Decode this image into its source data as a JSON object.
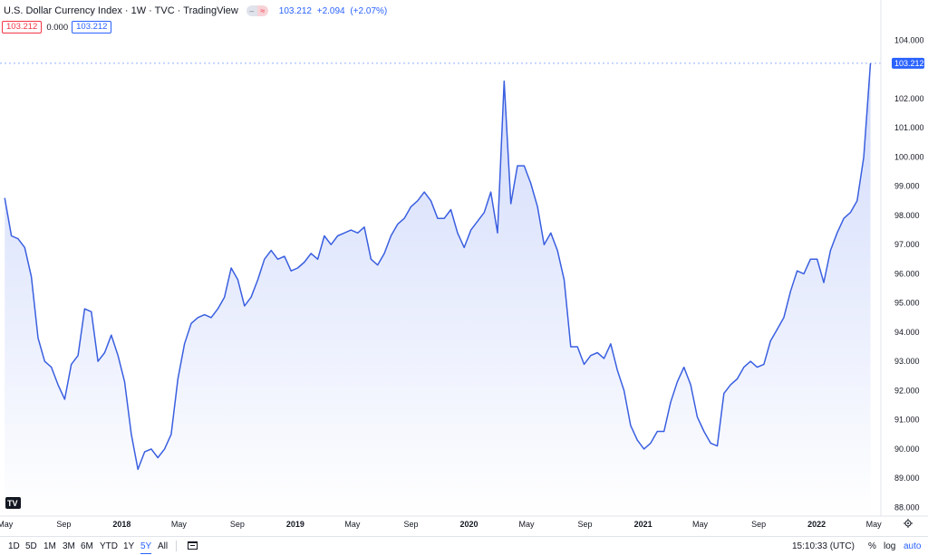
{
  "header": {
    "title": "U.S. Dollar Currency Index · 1W · TVC · TradingView",
    "last": "103.212",
    "change": "+2.094",
    "change_pct": "(+2.07%)"
  },
  "subheader": {
    "bid": "103.212",
    "spread": "0.000",
    "ask": "103.212"
  },
  "chart_data": {
    "type": "area",
    "ylim": [
      87.7,
      104.45
    ],
    "y_ticks": [
      "104.000",
      "103.000",
      "102.000",
      "101.000",
      "100.000",
      "99.000",
      "98.000",
      "97.000",
      "96.000",
      "95.000",
      "94.000",
      "93.000",
      "92.000",
      "91.000",
      "90.000",
      "89.000",
      "88.000"
    ],
    "x_ticks": [
      {
        "label": "May",
        "date": "2017-05-01"
      },
      {
        "label": "Sep",
        "date": "2017-09-01"
      },
      {
        "label": "2018",
        "date": "2018-01-01",
        "bold": true
      },
      {
        "label": "May",
        "date": "2018-05-01"
      },
      {
        "label": "Sep",
        "date": "2018-09-01"
      },
      {
        "label": "2019",
        "date": "2019-01-01",
        "bold": true
      },
      {
        "label": "May",
        "date": "2019-05-01"
      },
      {
        "label": "Sep",
        "date": "2019-09-01"
      },
      {
        "label": "2020",
        "date": "2020-01-01",
        "bold": true
      },
      {
        "label": "May",
        "date": "2020-05-01"
      },
      {
        "label": "Sep",
        "date": "2020-09-01"
      },
      {
        "label": "2021",
        "date": "2021-01-01",
        "bold": true
      },
      {
        "label": "May",
        "date": "2021-05-01"
      },
      {
        "label": "Sep",
        "date": "2021-09-01"
      },
      {
        "label": "2022",
        "date": "2022-01-01",
        "bold": true
      },
      {
        "label": "May",
        "date": "2022-05-01"
      }
    ],
    "last_value": 103.212,
    "last_label": "103.212",
    "x": [
      "2017-04-30",
      "2017-05-14",
      "2017-05-28",
      "2017-06-11",
      "2017-06-25",
      "2017-07-09",
      "2017-07-23",
      "2017-08-06",
      "2017-08-20",
      "2017-09-03",
      "2017-09-17",
      "2017-10-01",
      "2017-10-15",
      "2017-10-29",
      "2017-11-12",
      "2017-11-26",
      "2017-12-10",
      "2017-12-24",
      "2018-01-07",
      "2018-01-21",
      "2018-02-04",
      "2018-02-18",
      "2018-03-04",
      "2018-03-18",
      "2018-04-01",
      "2018-04-15",
      "2018-04-29",
      "2018-05-13",
      "2018-05-27",
      "2018-06-10",
      "2018-06-24",
      "2018-07-08",
      "2018-07-22",
      "2018-08-05",
      "2018-08-19",
      "2018-09-02",
      "2018-09-16",
      "2018-09-30",
      "2018-10-14",
      "2018-10-28",
      "2018-11-11",
      "2018-11-25",
      "2018-12-09",
      "2018-12-23",
      "2019-01-06",
      "2019-01-20",
      "2019-02-03",
      "2019-02-17",
      "2019-03-03",
      "2019-03-17",
      "2019-03-31",
      "2019-04-14",
      "2019-04-28",
      "2019-05-12",
      "2019-05-26",
      "2019-06-09",
      "2019-06-23",
      "2019-07-07",
      "2019-07-21",
      "2019-08-04",
      "2019-08-18",
      "2019-09-01",
      "2019-09-15",
      "2019-09-29",
      "2019-10-13",
      "2019-10-27",
      "2019-11-10",
      "2019-11-24",
      "2019-12-08",
      "2019-12-22",
      "2020-01-05",
      "2020-01-19",
      "2020-02-02",
      "2020-02-16",
      "2020-03-01",
      "2020-03-15",
      "2020-03-29",
      "2020-04-12",
      "2020-04-26",
      "2020-05-10",
      "2020-05-24",
      "2020-06-07",
      "2020-06-21",
      "2020-07-05",
      "2020-07-19",
      "2020-08-02",
      "2020-08-16",
      "2020-08-30",
      "2020-09-13",
      "2020-09-27",
      "2020-10-11",
      "2020-10-25",
      "2020-11-08",
      "2020-11-22",
      "2020-12-06",
      "2020-12-20",
      "2021-01-03",
      "2021-01-17",
      "2021-01-31",
      "2021-02-14",
      "2021-02-28",
      "2021-03-14",
      "2021-03-28",
      "2021-04-11",
      "2021-04-25",
      "2021-05-09",
      "2021-05-23",
      "2021-06-06",
      "2021-06-20",
      "2021-07-04",
      "2021-07-18",
      "2021-08-01",
      "2021-08-15",
      "2021-08-29",
      "2021-09-12",
      "2021-09-26",
      "2021-10-10",
      "2021-10-24",
      "2021-11-07",
      "2021-11-21",
      "2021-12-05",
      "2021-12-19",
      "2022-01-02",
      "2022-01-16",
      "2022-01-30",
      "2022-02-13",
      "2022-02-27",
      "2022-03-13",
      "2022-03-27",
      "2022-04-10",
      "2022-04-24"
    ],
    "values": [
      98.6,
      97.3,
      97.2,
      96.9,
      95.9,
      93.8,
      93.0,
      92.8,
      92.2,
      91.7,
      92.9,
      93.2,
      94.8,
      94.7,
      93.0,
      93.3,
      93.9,
      93.2,
      92.3,
      90.5,
      89.3,
      89.9,
      90.0,
      89.7,
      90.0,
      90.5,
      92.4,
      93.6,
      94.3,
      94.5,
      94.6,
      94.5,
      94.8,
      95.2,
      96.2,
      95.8,
      94.9,
      95.2,
      95.8,
      96.5,
      96.8,
      96.5,
      96.6,
      96.1,
      96.2,
      96.4,
      96.7,
      96.5,
      97.3,
      97.0,
      97.3,
      97.4,
      97.5,
      97.4,
      97.6,
      96.5,
      96.3,
      96.7,
      97.3,
      97.7,
      97.9,
      98.3,
      98.5,
      98.8,
      98.5,
      97.9,
      97.9,
      98.2,
      97.4,
      96.9,
      97.5,
      97.8,
      98.1,
      98.8,
      97.4,
      102.6,
      98.4,
      99.7,
      99.7,
      99.1,
      98.3,
      97.0,
      97.4,
      96.8,
      95.8,
      93.5,
      93.5,
      92.9,
      93.2,
      93.3,
      93.1,
      93.6,
      92.7,
      92.0,
      90.8,
      90.3,
      90.0,
      90.2,
      90.6,
      90.6,
      91.6,
      92.3,
      92.8,
      92.2,
      91.1,
      90.6,
      90.2,
      90.1,
      91.9,
      92.2,
      92.4,
      92.8,
      93.0,
      92.8,
      92.9,
      93.7,
      94.1,
      94.5,
      95.4,
      96.1,
      96.0,
      96.5,
      96.5,
      95.7,
      96.8,
      97.4,
      97.9,
      98.1,
      98.5,
      100.0,
      103.212
    ]
  },
  "toolbar": {
    "timeframes": [
      "1D",
      "5D",
      "1M",
      "3M",
      "6M",
      "YTD",
      "1Y",
      "5Y",
      "All"
    ],
    "active_timeframe": "5Y",
    "time": "15:10:33 (UTC)",
    "percent": "%",
    "log": "log",
    "auto": "auto"
  },
  "colors": {
    "line": "#3a5fe0",
    "fill_top": "#cfd9fb",
    "fill_bottom": "#ffffff",
    "accent": "#2962ff",
    "down": "#f23645"
  }
}
